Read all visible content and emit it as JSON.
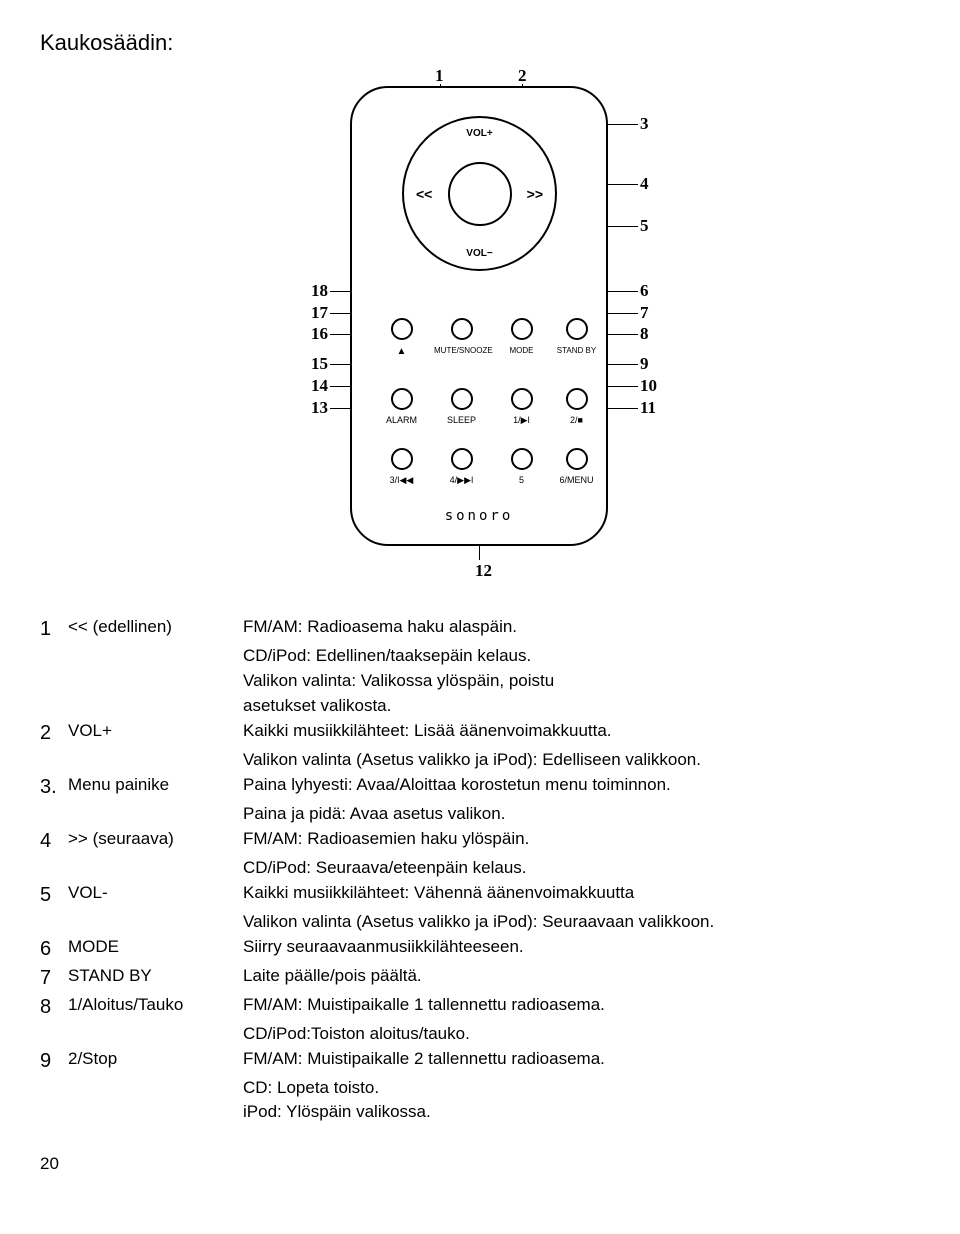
{
  "title": "Kaukosäädin:",
  "page_number": "20",
  "brand": "sonoro",
  "pad": {
    "volplus": "VOL+",
    "volminus": "VOL−",
    "left": "<<",
    "right": ">>"
  },
  "row1": {
    "b1": "▲",
    "b1lbl": "",
    "b2": "MUTE/SNOOZE",
    "b3": "MODE",
    "b4": "STAND BY"
  },
  "row2": {
    "b1": "ALARM",
    "b2": "SLEEP",
    "b3": "1/▶ǀ",
    "b4": "2/■"
  },
  "row3": {
    "b1": "3/ǀ◀◀",
    "b2": "4/▶▶ǀ",
    "b3": "5",
    "b4": "6/MENU"
  },
  "callouts": {
    "n1": "1",
    "n2": "2",
    "n3": "3",
    "n4": "4",
    "n5": "5",
    "n6": "6",
    "n7": "7",
    "n8": "8",
    "n9": "9",
    "n10": "10",
    "n11": "11",
    "n12": "12",
    "n13": "13",
    "n14": "14",
    "n15": "15",
    "n16": "16",
    "n17": "17",
    "n18": "18"
  },
  "items": [
    {
      "num": "1",
      "label": "<< (edellinen)",
      "lines": [
        "FM/AM: Radioasema haku alaspäin.",
        "CD/iPod: Edellinen/taaksepäin kelaus.",
        "Valikon valinta: Valikossa ylöspäin, poistu",
        "asetukset valikosta."
      ]
    },
    {
      "num": "2",
      "label": "VOL+",
      "lines": [
        "Kaikki musiikkilähteet: Lisää äänenvoimakkuutta.",
        "Valikon valinta (Asetus valikko ja iPod): Edelliseen valikkoon."
      ]
    },
    {
      "num": "3.",
      "label": "Menu painike",
      "lines": [
        "Paina lyhyesti: Avaa/Aloittaa korostetun menu toiminnon.",
        "Paina ja pidä: Avaa asetus valikon."
      ]
    },
    {
      "num": "4",
      "label": ">> (seuraava)",
      "lines": [
        "FM/AM: Radioasemien haku ylöspäin.",
        "CD/iPod: Seuraava/eteenpäin kelaus."
      ]
    },
    {
      "num": "5",
      "label": "VOL-",
      "lines": [
        "Kaikki musiikkilähteet: Vähennä äänenvoimakkuutta",
        "Valikon valinta (Asetus valikko ja iPod): Seuraavaan valikkoon."
      ]
    },
    {
      "num": "6",
      "label": "MODE",
      "lines": [
        "Siirry seuraavaanmusiikkilähteeseen."
      ]
    },
    {
      "num": "7",
      "label": " STAND BY",
      "lines": [
        " Laite päälle/pois päältä."
      ]
    },
    {
      "num": "8",
      "label": "1/Aloitus/Tauko",
      "lines": [
        "FM/AM: Muistipaikalle 1 tallennettu radioasema.",
        "CD/iPod:Toiston aloitus/tauko."
      ]
    },
    {
      "num": "9",
      "label": "2/Stop",
      "lines": [
        "FM/AM: Muistipaikalle 2 tallennettu radioasema.",
        "CD: Lopeta toisto.",
        "iPod: Ylöspäin valikossa."
      ]
    }
  ]
}
